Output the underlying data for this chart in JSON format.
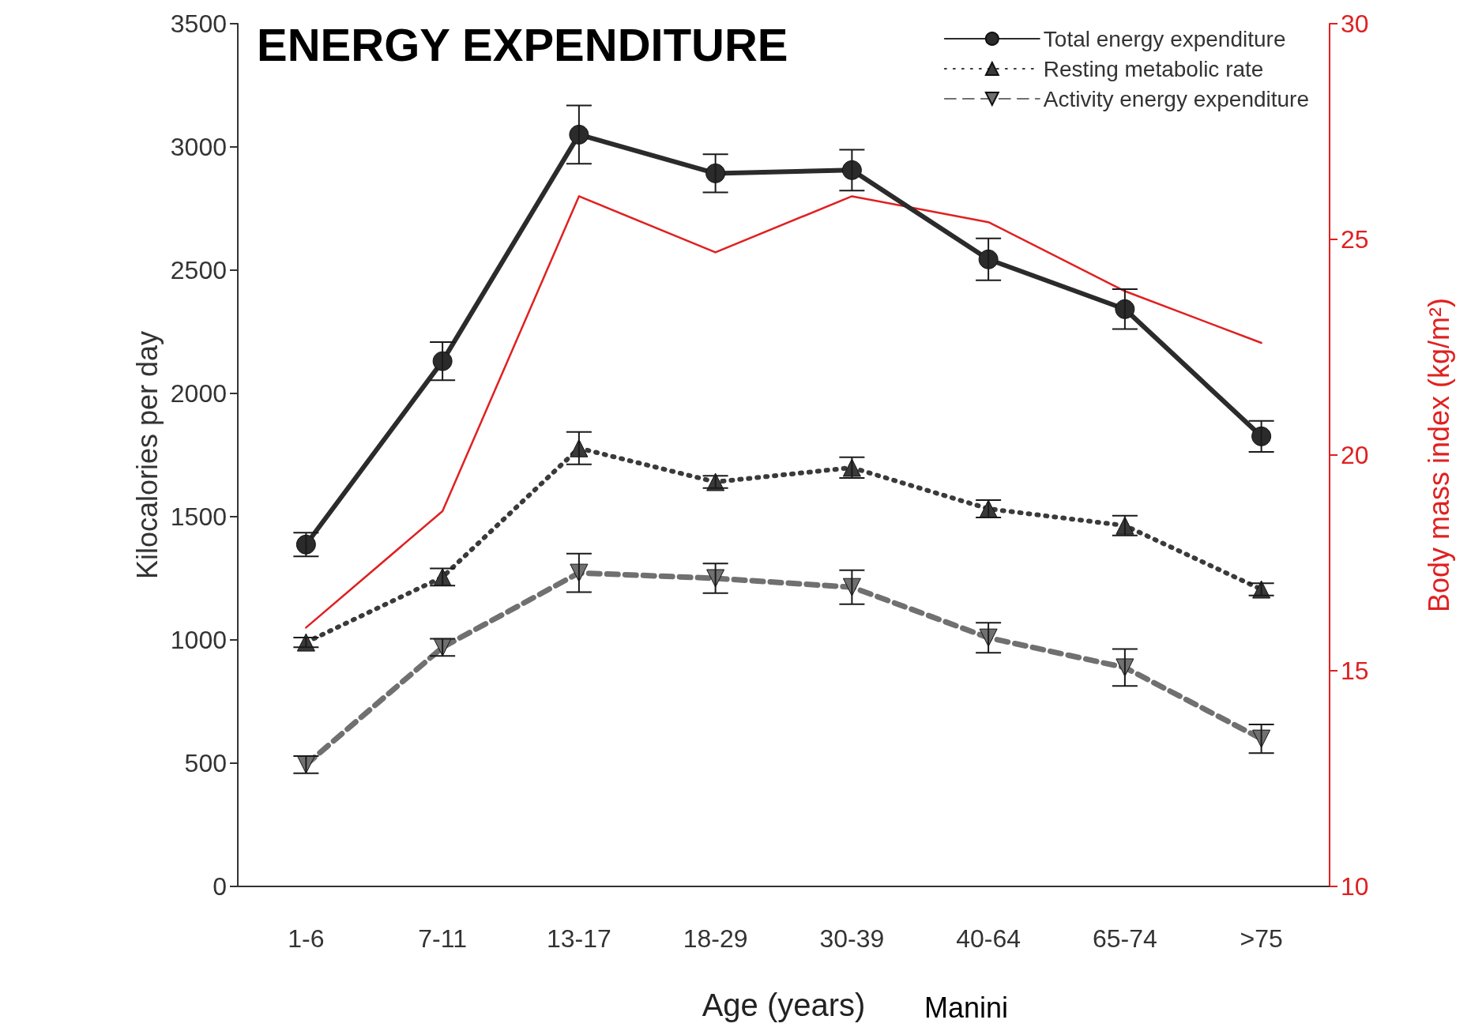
{
  "chart_data": {
    "type": "line",
    "title": "ENERGY EXPENDITURE",
    "xlabel": "Age (years)",
    "ylabel": "Kilocalories per day",
    "y2label": "Body mass index (kg/m²)",
    "categories": [
      "1-6",
      "7-11",
      "13-17",
      "18-29",
      "30-39",
      "40-64",
      "65-74",
      ">75"
    ],
    "series": [
      {
        "name": "Total energy expenditure",
        "color": "#2b2b2b",
        "marker": "circle",
        "line_style": "solid",
        "values": [
          1387,
          2131,
          3050,
          2893,
          2906,
          2544,
          2342,
          1826
        ],
        "errors": [
          48,
          77,
          118,
          77,
          83,
          85,
          81,
          63
        ]
      },
      {
        "name": "Resting metabolic rate",
        "color": "#3a3a3a",
        "marker": "triangle",
        "line_style": "dotted",
        "values": [
          990,
          1255,
          1778,
          1641,
          1699,
          1532,
          1464,
          1205
        ],
        "errors": [
          20,
          35,
          66,
          25,
          42,
          35,
          40,
          25
        ]
      },
      {
        "name": "Activity energy expenditure",
        "color": "#707070",
        "marker": "triangle-down",
        "line_style": "dashed",
        "values": [
          494,
          970,
          1272,
          1250,
          1214,
          1009,
          888,
          599
        ],
        "errors": [
          35,
          35,
          78,
          60,
          69,
          61,
          75,
          58
        ]
      },
      {
        "color": "#e02020",
        "marker": "none",
        "line_style": "solid",
        "axis": "y2",
        "values": [
          16.0,
          18.7,
          26.0,
          24.7,
          26.0,
          25.4,
          23.8,
          22.6
        ]
      }
    ],
    "ylim": [
      0,
      3500
    ],
    "yticks": [
      0,
      500,
      1000,
      1500,
      2000,
      2500,
      3000,
      3500
    ],
    "y2lim": [
      10,
      30
    ],
    "y2ticks": [
      10,
      15,
      20,
      25,
      30
    ],
    "grid": false,
    "legend": "top right",
    "annotations": [
      "Manini"
    ]
  }
}
